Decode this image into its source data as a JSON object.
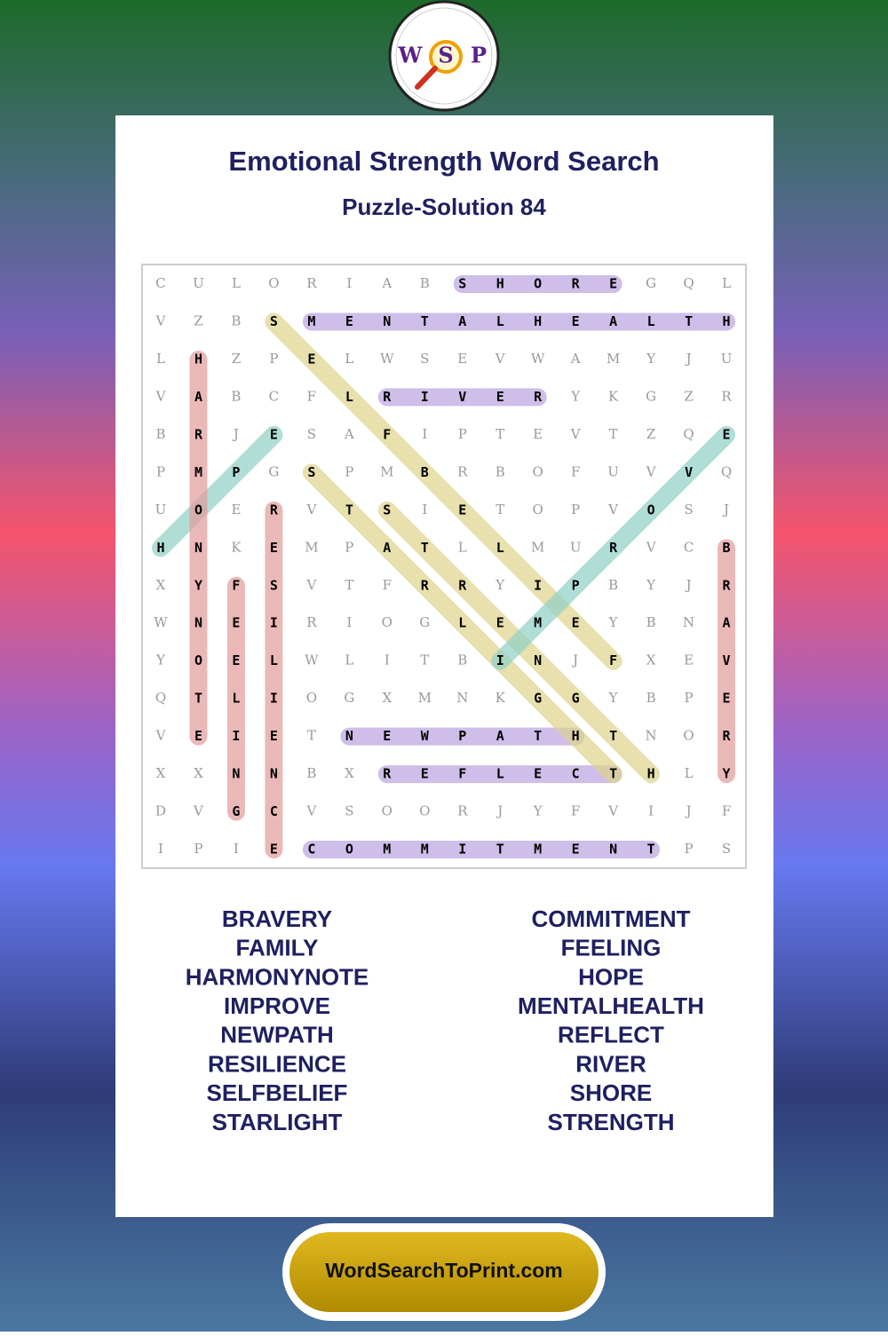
{
  "logo": {
    "letters": [
      "W",
      "S",
      "P"
    ]
  },
  "header": {
    "title": "Emotional Strength Word Search",
    "subtitle": "Puzzle-Solution 84"
  },
  "grid": {
    "rows": [
      [
        "C",
        "U",
        "L",
        "O",
        "R",
        "I",
        "A",
        "B",
        "S",
        "H",
        "O",
        "R",
        "E",
        "G",
        "Q",
        "L"
      ],
      [
        "V",
        "Z",
        "B",
        "S",
        "M",
        "E",
        "N",
        "T",
        "A",
        "L",
        "H",
        "E",
        "A",
        "L",
        "T",
        "H"
      ],
      [
        "L",
        "H",
        "Z",
        "P",
        "E",
        "L",
        "W",
        "S",
        "E",
        "V",
        "W",
        "A",
        "M",
        "Y",
        "J",
        "U"
      ],
      [
        "V",
        "A",
        "B",
        "C",
        "F",
        "L",
        "R",
        "I",
        "V",
        "E",
        "R",
        "Y",
        "K",
        "G",
        "Z",
        "R"
      ],
      [
        "B",
        "R",
        "J",
        "E",
        "S",
        "A",
        "F",
        "I",
        "P",
        "T",
        "E",
        "V",
        "T",
        "Z",
        "Q",
        "E"
      ],
      [
        "P",
        "M",
        "P",
        "G",
        "S",
        "P",
        "M",
        "B",
        "R",
        "B",
        "O",
        "F",
        "U",
        "V",
        "V",
        "Q"
      ],
      [
        "U",
        "O",
        "E",
        "R",
        "V",
        "T",
        "S",
        "I",
        "E",
        "T",
        "O",
        "P",
        "V",
        "O",
        "S",
        "J"
      ],
      [
        "H",
        "N",
        "K",
        "E",
        "M",
        "P",
        "A",
        "T",
        "L",
        "L",
        "M",
        "U",
        "R",
        "V",
        "C",
        "B"
      ],
      [
        "X",
        "Y",
        "F",
        "S",
        "V",
        "T",
        "F",
        "R",
        "R",
        "Y",
        "I",
        "P",
        "B",
        "Y",
        "J",
        "R"
      ],
      [
        "W",
        "N",
        "E",
        "I",
        "R",
        "I",
        "O",
        "G",
        "L",
        "E",
        "M",
        "E",
        "Y",
        "B",
        "N",
        "A"
      ],
      [
        "Y",
        "O",
        "E",
        "L",
        "W",
        "L",
        "I",
        "T",
        "B",
        "I",
        "N",
        "J",
        "F",
        "X",
        "E",
        "V"
      ],
      [
        "Q",
        "T",
        "L",
        "I",
        "O",
        "G",
        "X",
        "M",
        "N",
        "K",
        "G",
        "G",
        "Y",
        "B",
        "P",
        "E"
      ],
      [
        "V",
        "E",
        "I",
        "E",
        "T",
        "N",
        "E",
        "W",
        "P",
        "A",
        "T",
        "H",
        "T",
        "N",
        "O",
        "R"
      ],
      [
        "X",
        "X",
        "N",
        "N",
        "B",
        "X",
        "R",
        "E",
        "F",
        "L",
        "E",
        "C",
        "T",
        "H",
        "L",
        "Y"
      ],
      [
        "D",
        "V",
        "G",
        "C",
        "V",
        "S",
        "O",
        "O",
        "R",
        "J",
        "Y",
        "F",
        "V",
        "I",
        "J",
        "F"
      ],
      [
        "I",
        "P",
        "I",
        "E",
        "C",
        "O",
        "M",
        "M",
        "I",
        "T",
        "M",
        "E",
        "N",
        "T",
        "P",
        "S"
      ]
    ]
  },
  "word_list": {
    "left": [
      "BRAVERY",
      "FAMILY",
      "HARMONYNOTE",
      "IMPROVE",
      "NEWPATH",
      "RESILIENCE",
      "SELFBELIEF",
      "STARLIGHT"
    ],
    "right": [
      "COMMITMENT",
      "FEELING",
      "HOPE",
      "MENTALHEALTH",
      "REFLECT",
      "RIVER",
      "SHORE",
      "STRENGTH"
    ]
  },
  "footer": {
    "site": "WordSearchToPrint.com"
  }
}
